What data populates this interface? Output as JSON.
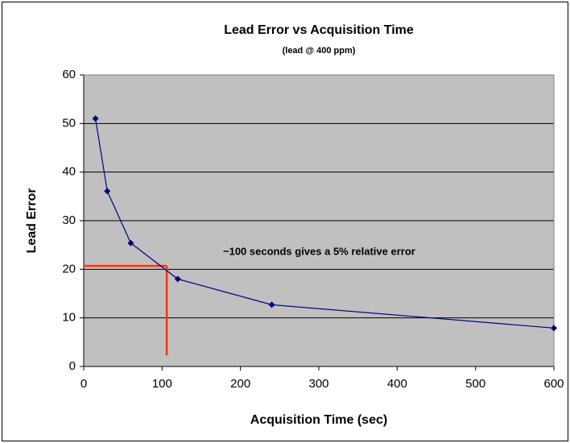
{
  "chart_data": {
    "type": "line",
    "title": "Lead Error vs Acquisition Time",
    "subtitle": "(lead @ 400 ppm)",
    "x_label": "Acquisition Time (sec)",
    "y_label": "Lead Error",
    "series": [
      {
        "name": "Lead Error",
        "color": "#000080",
        "x": [
          15,
          30,
          60,
          120,
          240,
          600
        ],
        "values": [
          51,
          36.1,
          25.4,
          18,
          12.7,
          7.9
        ]
      }
    ],
    "xlim": [
      0,
      600
    ],
    "xticks": [
      0,
      100,
      200,
      300,
      400,
      500,
      600
    ],
    "ylim": [
      0,
      60
    ],
    "yticks": [
      0,
      10,
      20,
      30,
      40,
      50,
      60
    ],
    "grid": true,
    "annotation": {
      "text": "~100 seconds gives a 5% relative error",
      "color": "#ff3300",
      "x": 106,
      "y": 20.7,
      "y_end": 2.3
    }
  }
}
